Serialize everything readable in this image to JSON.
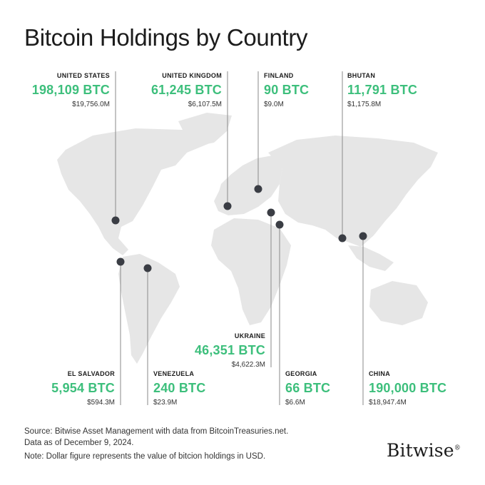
{
  "title": "Bitcoin Holdings by Country",
  "chart_data": {
    "type": "map",
    "title": "Bitcoin Holdings by Country",
    "series": [
      {
        "country": "UNITED STATES",
        "btc": "198,109 BTC",
        "usd": "$19,756.0M",
        "btc_value": 198109,
        "usd_value_m": 19756.0
      },
      {
        "country": "UNITED KINGDOM",
        "btc": "61,245 BTC",
        "usd": "$6,107.5M",
        "btc_value": 61245,
        "usd_value_m": 6107.5
      },
      {
        "country": "FINLAND",
        "btc": "90 BTC",
        "usd": "$9.0M",
        "btc_value": 90,
        "usd_value_m": 9.0
      },
      {
        "country": "BHUTAN",
        "btc": "11,791 BTC",
        "usd": "$1,175.8M",
        "btc_value": 11791,
        "usd_value_m": 1175.8
      },
      {
        "country": "UKRAINE",
        "btc": "46,351 BTC",
        "usd": "$4,622.3M",
        "btc_value": 46351,
        "usd_value_m": 4622.3
      },
      {
        "country": "EL SALVADOR",
        "btc": "5,954 BTC",
        "usd": "$594.3M",
        "btc_value": 5954,
        "usd_value_m": 594.3
      },
      {
        "country": "VENEZUELA",
        "btc": "240 BTC",
        "usd": "$23.9M",
        "btc_value": 240,
        "usd_value_m": 23.9
      },
      {
        "country": "GEORGIA",
        "btc": "66 BTC",
        "usd": "$6.6M",
        "btc_value": 66,
        "usd_value_m": 6.6
      },
      {
        "country": "CHINA",
        "btc": "190,000 BTC",
        "usd": "$18,947.4M",
        "btc_value": 190000,
        "usd_value_m": 18947.4
      }
    ]
  },
  "footer": {
    "source": "Source: Bitwise Asset Management with data from BitcoinTreasuries.net.",
    "date": "Data as of December 9, 2024.",
    "note": "Note: Dollar figure represents the value of bitcion holdings in USD."
  },
  "brand": "Bitwise",
  "colors": {
    "accent": "#3dbf7c",
    "land": "#e6e6e6",
    "marker": "#3a3d44"
  }
}
